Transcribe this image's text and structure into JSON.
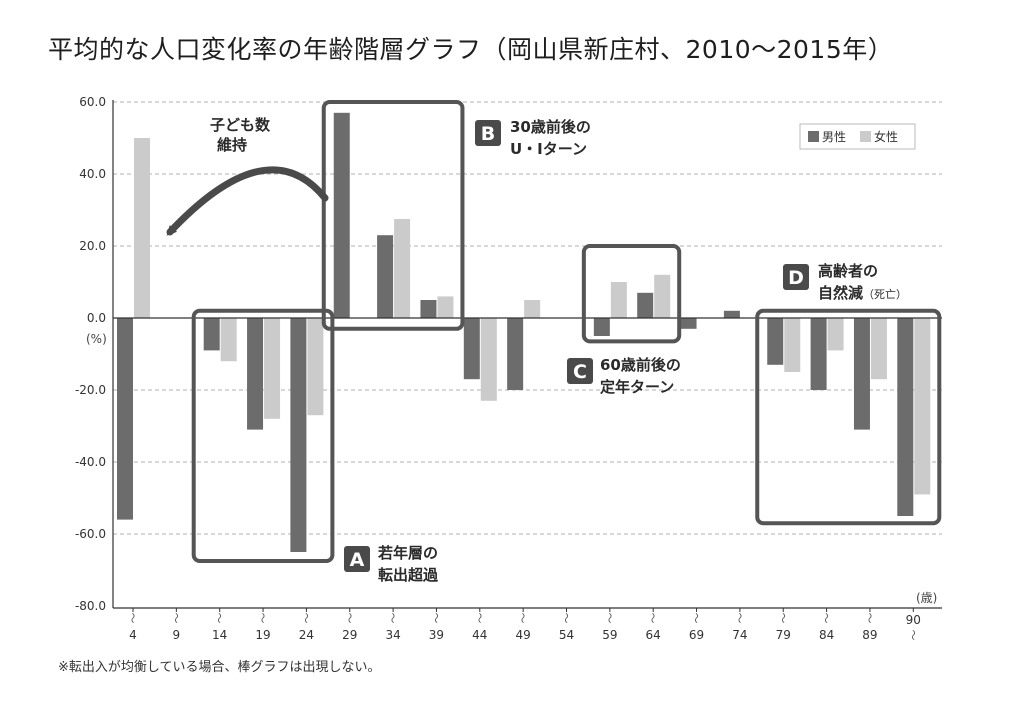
{
  "title": "平均的な人口変化率の年齢階層グラフ（岡山県新庄村、2010〜2015年）",
  "footnote": "※転出入が均衡している場合、棒グラフは出現しない。",
  "colors": {
    "male": "#6c6c6c",
    "female": "#cbcbcb",
    "box": "#555555",
    "badge": "#4a4a4a",
    "grid": "#b0b0b0"
  },
  "chart_data": {
    "type": "bar",
    "ylim": [
      -80,
      60
    ],
    "yticks": [
      {
        "value": 60,
        "label": "60.0"
      },
      {
        "value": 40,
        "label": "40.0"
      },
      {
        "value": 20,
        "label": "20.0"
      },
      {
        "value": 0,
        "label": "0.0"
      },
      {
        "value": -20,
        "label": "-20.0"
      },
      {
        "value": -40,
        "label": "-40.0"
      },
      {
        "value": -60,
        "label": "-60.0"
      },
      {
        "value": -80,
        "label": "-80.0"
      }
    ],
    "yunit": "(%)",
    "xunit": "(歳)",
    "grid": "dashed-horizontal",
    "tilde": "〜",
    "categories": [
      "4",
      "9",
      "14",
      "19",
      "24",
      "29",
      "34",
      "39",
      "44",
      "49",
      "54",
      "59",
      "64",
      "69",
      "74",
      "79",
      "84",
      "89",
      "90"
    ],
    "legend": {
      "position": "top-right",
      "male_label": "男性",
      "female_label": "女性"
    },
    "series": [
      {
        "name": "男性",
        "values": [
          -56,
          0,
          -9,
          -31,
          -65,
          57,
          23,
          5,
          -17,
          -20,
          0,
          -5,
          7,
          -3,
          2,
          -13,
          -20,
          -31,
          -55
        ]
      },
      {
        "name": "女性",
        "values": [
          50,
          0,
          -12,
          -28,
          -27,
          0,
          27.5,
          6,
          -23,
          5,
          0,
          10,
          12,
          0,
          0,
          -15,
          -9,
          -17,
          -49
        ]
      }
    ],
    "annotations": [
      {
        "letter": "A",
        "line1": "若年層の",
        "line2": "転出超過",
        "from": 2,
        "to": 4,
        "top": 2,
        "bottom": -67.5
      },
      {
        "letter": "B",
        "line1": "30歳前後の",
        "line2": "U・Iターン",
        "from": 5,
        "to": 7,
        "top": 60,
        "bottom": -3
      },
      {
        "letter": "C",
        "line1": "60歳前後の",
        "line2": "定年ターン",
        "from": 11,
        "to": 12,
        "top": 20,
        "bottom": -6.5
      },
      {
        "letter": "D",
        "line1": "高齢者の",
        "line2": "自然減",
        "line2_small": "（死亡）",
        "from": 15,
        "to": 18,
        "top": 2,
        "bottom": -57
      }
    ],
    "arrow_note": {
      "line1": "子ども数",
      "line2": "維持"
    }
  }
}
